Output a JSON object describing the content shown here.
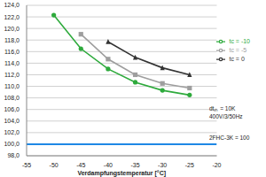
{
  "chart_data": {
    "type": "line",
    "x_label": "Verdampfungstemperatur [°C]",
    "x": [
      -50,
      -45,
      -40,
      -35,
      -30,
      -25
    ],
    "series": [
      {
        "name": "tc = -10",
        "color": "#2eaa3c",
        "marker": "circle",
        "values": [
          122.3,
          116.5,
          113.0,
          110.7,
          109.3,
          108.5
        ]
      },
      {
        "name": "tc = -5",
        "color": "#9e9e9e",
        "marker": "square",
        "values": [
          null,
          119.0,
          114.7,
          112.0,
          110.5,
          109.7
        ]
      },
      {
        "name": "tc = 0",
        "color": "#333333",
        "marker": "triangle",
        "values": [
          null,
          null,
          117.7,
          115.0,
          113.2,
          112.0
        ]
      }
    ],
    "xlim": [
      -55,
      -20
    ],
    "xticks": [
      -55,
      -50,
      -45,
      -40,
      -35,
      -30,
      -25,
      -20
    ],
    "ylim": [
      98,
      124
    ],
    "yticks": [
      {
        "value": 98,
        "label": "98,0"
      },
      {
        "value": 100,
        "label": "100,0"
      },
      {
        "value": 102,
        "label": "102,0"
      },
      {
        "value": 104,
        "label": "104,0"
      },
      {
        "value": 106,
        "label": "106,0"
      },
      {
        "value": 108,
        "label": "108,0"
      },
      {
        "value": 110,
        "label": "110,0"
      },
      {
        "value": 112,
        "label": "112,0"
      },
      {
        "value": 114,
        "label": "114,0"
      },
      {
        "value": 116,
        "label": "116,0"
      },
      {
        "value": 118,
        "label": "118,0"
      },
      {
        "value": 120,
        "label": "120,0"
      },
      {
        "value": 122,
        "label": "122,0"
      },
      {
        "value": 124,
        "label": "124,0"
      }
    ],
    "grid": true,
    "legend": "right",
    "reference_line": {
      "label": "2FHC-3K = 100",
      "y": 100,
      "color": "#1e88e5"
    },
    "annotations": [
      "dtₛₕ = 10K",
      "400V/3/50Hz"
    ]
  }
}
